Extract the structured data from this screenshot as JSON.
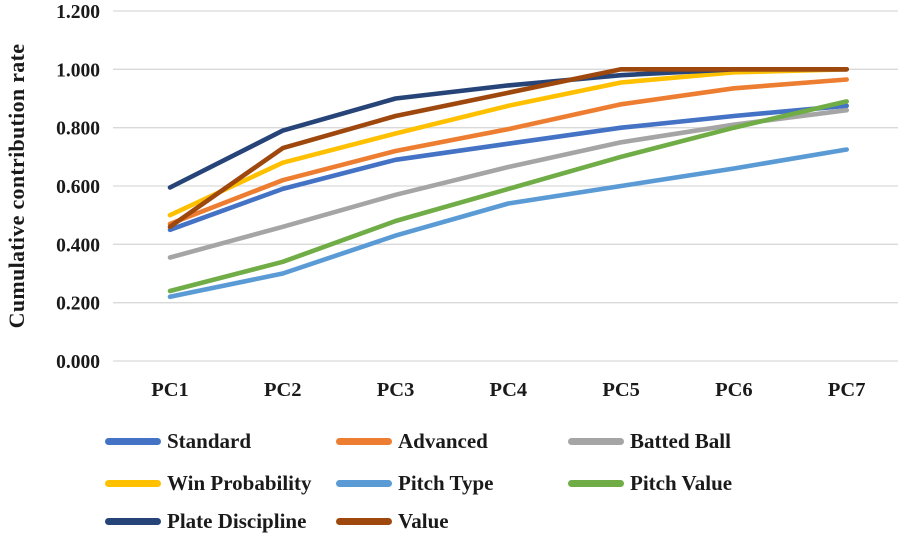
{
  "chart_data": {
    "type": "line",
    "title": "",
    "xlabel": "",
    "ylabel": "Cumulative contribution rate",
    "categories": [
      "PC1",
      "PC2",
      "PC3",
      "PC4",
      "PC5",
      "PC6",
      "PC7"
    ],
    "y_ticks": [
      "0.000",
      "0.200",
      "0.400",
      "0.600",
      "0.800",
      "1.000",
      "1.200"
    ],
    "ylim": [
      0,
      1.2
    ],
    "grid": true,
    "legend_position": "bottom",
    "gridline_color": "#D9D9D9",
    "series": [
      {
        "name": "Standard",
        "color": "#4472C4",
        "values": [
          0.45,
          0.59,
          0.69,
          0.745,
          0.8,
          0.84,
          0.875
        ]
      },
      {
        "name": "Advanced",
        "color": "#ED7D31",
        "values": [
          0.47,
          0.62,
          0.72,
          0.795,
          0.88,
          0.935,
          0.965
        ]
      },
      {
        "name": "Batted Ball",
        "color": "#A5A5A5",
        "values": [
          0.355,
          0.46,
          0.57,
          0.665,
          0.75,
          0.81,
          0.86
        ]
      },
      {
        "name": "Win Probability",
        "color": "#FFC000",
        "values": [
          0.5,
          0.68,
          0.78,
          0.875,
          0.955,
          0.99,
          1.0
        ]
      },
      {
        "name": "Pitch Type",
        "color": "#5B9BD5",
        "values": [
          0.22,
          0.3,
          0.43,
          0.54,
          0.6,
          0.66,
          0.725
        ]
      },
      {
        "name": "Pitch Value",
        "color": "#70AD47",
        "values": [
          0.24,
          0.34,
          0.48,
          0.59,
          0.7,
          0.8,
          0.89
        ]
      },
      {
        "name": "Plate Discipline",
        "color": "#264478",
        "values": [
          0.595,
          0.79,
          0.9,
          0.945,
          0.98,
          1.0,
          1.0
        ]
      },
      {
        "name": "Value",
        "color": "#9E480E",
        "values": [
          0.46,
          0.73,
          0.84,
          0.92,
          1.0,
          1.0,
          1.0
        ]
      }
    ]
  }
}
